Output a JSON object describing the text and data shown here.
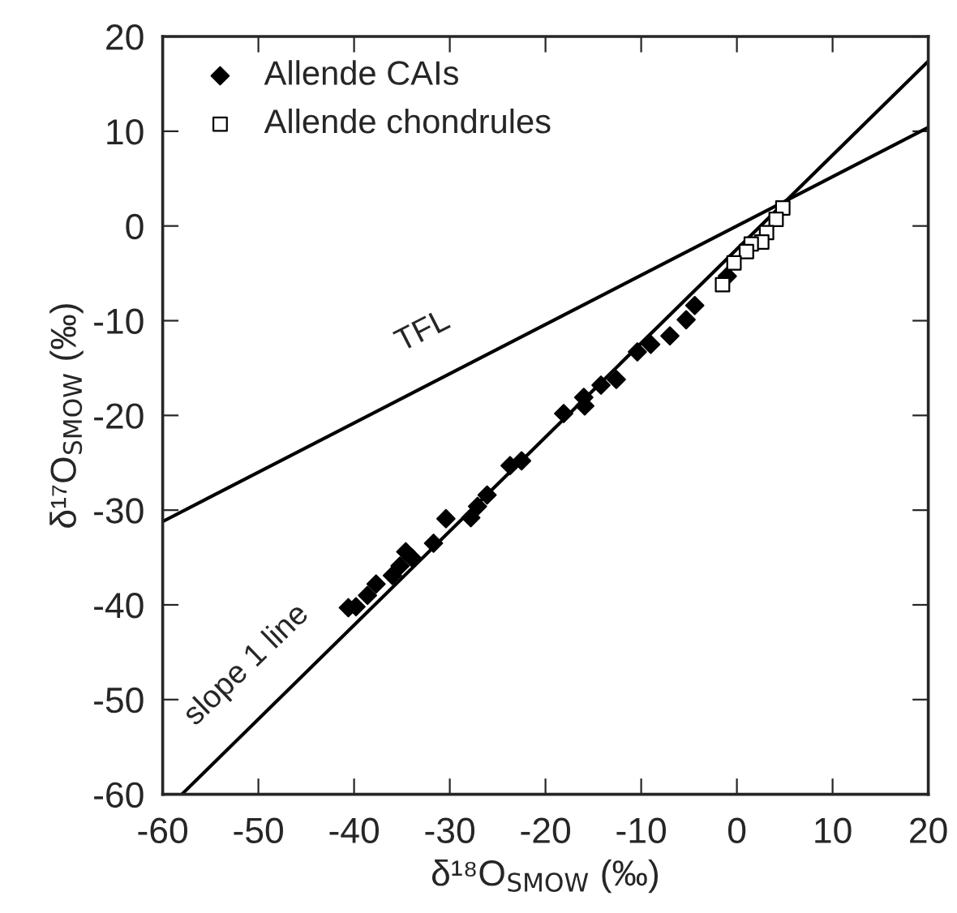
{
  "chart_data": {
    "type": "scatter",
    "xlabel": "δ¹⁸O$_{SMOW}$ (‰)",
    "ylabel": "δ¹⁷O$_{SMOW}$ (‰)",
    "xlim": [
      -60,
      20
    ],
    "ylim": [
      -60,
      20
    ],
    "xticks": [
      -60,
      -50,
      -40,
      -30,
      -20,
      -10,
      0,
      10,
      20
    ],
    "yticks": [
      -60,
      -50,
      -40,
      -30,
      -20,
      -10,
      0,
      10,
      20
    ],
    "grid": false,
    "legend": "top left",
    "series": [
      {
        "type": "line",
        "color": "#000000",
        "x": [
          -60,
          20
        ],
        "values": [
          -31.2,
          10.4
        ]
      },
      {
        "type": "line",
        "color": "#000000",
        "x": [
          -58,
          20
        ],
        "values": [
          -60,
          17.4
        ]
      },
      {
        "name": "Allende CAIs",
        "color": "#000000",
        "marker": "diamond",
        "x": [
          -40.6,
          -39.8,
          -38.6,
          -37.7,
          -36.0,
          -35.2,
          -34.6,
          -34.0,
          -31.7,
          -30.4,
          -27.8,
          -27.1,
          -26.1,
          -23.7,
          -22.5,
          -18.1,
          -15.9,
          -16.0,
          -14.2,
          -12.6,
          -10.4,
          -9.0,
          -7.0,
          -5.3,
          -4.4,
          -1.0
        ],
        "values": [
          -40.3,
          -40.2,
          -39.0,
          -37.8,
          -36.9,
          -35.9,
          -34.4,
          -35.0,
          -33.5,
          -30.9,
          -30.8,
          -29.6,
          -28.4,
          -25.3,
          -24.8,
          -19.8,
          -19.0,
          -18.1,
          -16.8,
          -16.2,
          -13.3,
          -12.5,
          -11.6,
          -9.9,
          -8.4,
          -5.3
        ]
      },
      {
        "name": "Allende chondrules",
        "color": "#ffffff",
        "marker": "square",
        "x": [
          4.8,
          4.1,
          3.1,
          2.6,
          1.5,
          1.0,
          -0.3,
          -1.5
        ],
        "values": [
          1.9,
          0.7,
          -0.7,
          -1.7,
          -1.9,
          -2.7,
          -3.9,
          -6.2
        ]
      }
    ],
    "annotations": [
      "TFL",
      "slope 1 line"
    ]
  }
}
